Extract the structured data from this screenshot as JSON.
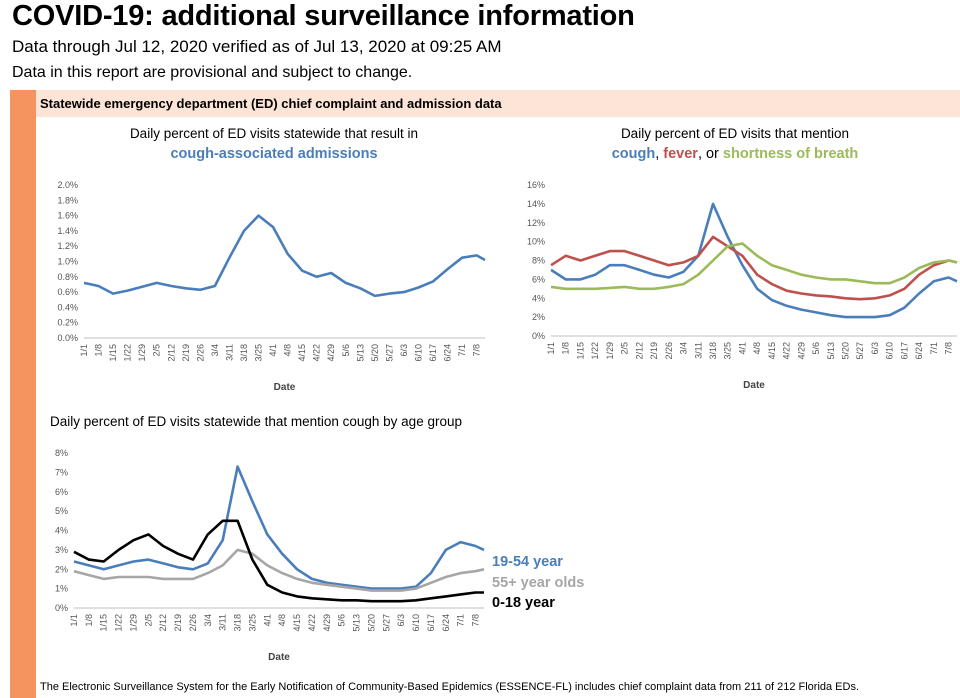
{
  "page": {
    "title": "COVID-19: additional surveillance information",
    "subtitle": "Data through Jul 12, 2020 verified as of Jul 13, 2020 at 09:25 AM",
    "disclaimer": "Data in this report are provisional and subject to change.",
    "section_header": "Statewide emergency department (ED) chief complaint and admission data",
    "footer": "The Electronic Surveillance System for the Early Notification of Community-Based Epidemics (ESSENCE-FL) includes chief complaint data from 211 of 212 Florida EDs."
  },
  "colors": {
    "blue": "#4a7ebb",
    "red": "#c0504d",
    "green": "#9bbb59",
    "gray": "#a6a6a6",
    "black": "#000000",
    "accent": "#f4955f"
  },
  "chart1_text": {
    "line1": "Daily percent of ED visits statewide that result in",
    "line2": "cough-associated admissions"
  },
  "chart2_text": {
    "line1": "Daily percent of ED visits that mention",
    "cough": "cough",
    "comma": ",",
    "fever": "fever",
    "or": ", or",
    "sob": "shortness of breath"
  },
  "chart3_text": {
    "line1": "Daily percent of ED visits statewide that mention cough by age group"
  },
  "chart_data": [
    {
      "type": "line",
      "title": "Daily percent of ED visits statewide that result in cough-associated admissions",
      "xlabel": "Date",
      "ylabel": "",
      "x_ticks": [
        "1/1",
        "1/8",
        "1/15",
        "1/22",
        "1/29",
        "2/5",
        "2/12",
        "2/19",
        "2/26",
        "3/4",
        "3/11",
        "3/18",
        "3/25",
        "4/1",
        "4/8",
        "4/15",
        "4/22",
        "4/29",
        "5/6",
        "5/13",
        "5/20",
        "5/27",
        "6/3",
        "6/10",
        "6/17",
        "6/24",
        "7/1",
        "7/8"
      ],
      "y_ticks": [
        "0.0%",
        "0.2%",
        "0.4%",
        "0.6%",
        "0.8%",
        "1.0%",
        "1.2%",
        "1.4%",
        "1.6%",
        "1.8%",
        "2.0%"
      ],
      "ylim": [
        0,
        2.0
      ],
      "series": [
        {
          "color": "#4a7ebb",
          "x": [
            "1/1",
            "1/8",
            "1/15",
            "1/22",
            "1/29",
            "2/5",
            "2/12",
            "2/19",
            "2/26",
            "3/4",
            "3/11",
            "3/18",
            "3/25",
            "4/1",
            "4/8",
            "4/15",
            "4/22",
            "4/29",
            "5/6",
            "5/13",
            "5/20",
            "5/27",
            "6/3",
            "6/10",
            "6/17",
            "6/24",
            "7/1",
            "7/8",
            "7/12"
          ],
          "values": [
            0.72,
            0.68,
            0.58,
            0.62,
            0.67,
            0.72,
            0.68,
            0.65,
            0.63,
            0.68,
            1.05,
            1.4,
            1.6,
            1.45,
            1.1,
            0.88,
            0.8,
            0.85,
            0.72,
            0.65,
            0.55,
            0.58,
            0.6,
            0.66,
            0.74,
            0.9,
            1.05,
            1.08,
            1.02
          ]
        }
      ]
    },
    {
      "type": "line",
      "title": "Daily percent of ED visits that mention cough, fever, or shortness of breath",
      "xlabel": "Date",
      "ylabel": "",
      "x_ticks": [
        "1/1",
        "1/8",
        "1/15",
        "1/22",
        "1/29",
        "2/5",
        "2/12",
        "2/19",
        "2/26",
        "3/4",
        "3/11",
        "3/18",
        "3/25",
        "4/1",
        "4/8",
        "4/15",
        "4/22",
        "4/29",
        "5/6",
        "5/13",
        "5/20",
        "5/27",
        "6/3",
        "6/10",
        "6/17",
        "6/24",
        "7/1",
        "7/8"
      ],
      "y_ticks": [
        "0%",
        "2%",
        "4%",
        "6%",
        "8%",
        "10%",
        "12%",
        "14%",
        "16%"
      ],
      "ylim": [
        0,
        16
      ],
      "series": [
        {
          "name": "cough",
          "color": "#4a7ebb",
          "x": [
            "1/1",
            "1/8",
            "1/15",
            "1/22",
            "1/29",
            "2/5",
            "2/12",
            "2/19",
            "2/26",
            "3/4",
            "3/11",
            "3/18",
            "3/25",
            "4/1",
            "4/8",
            "4/15",
            "4/22",
            "4/29",
            "5/6",
            "5/13",
            "5/20",
            "5/27",
            "6/3",
            "6/10",
            "6/17",
            "6/24",
            "7/1",
            "7/8",
            "7/12"
          ],
          "values": [
            7.0,
            6.0,
            6.0,
            6.5,
            7.5,
            7.5,
            7.0,
            6.5,
            6.2,
            6.8,
            8.5,
            14.0,
            10.5,
            7.5,
            5.0,
            3.8,
            3.2,
            2.8,
            2.5,
            2.2,
            2.0,
            2.0,
            2.0,
            2.2,
            3.0,
            4.5,
            5.8,
            6.2,
            5.8
          ]
        },
        {
          "name": "fever",
          "color": "#c0504d",
          "x": [
            "1/1",
            "1/8",
            "1/15",
            "1/22",
            "1/29",
            "2/5",
            "2/12",
            "2/19",
            "2/26",
            "3/4",
            "3/11",
            "3/18",
            "3/25",
            "4/1",
            "4/8",
            "4/15",
            "4/22",
            "4/29",
            "5/6",
            "5/13",
            "5/20",
            "5/27",
            "6/3",
            "6/10",
            "6/17",
            "6/24",
            "7/1",
            "7/8",
            "7/12"
          ],
          "values": [
            7.5,
            8.5,
            8.0,
            8.5,
            9.0,
            9.0,
            8.5,
            8.0,
            7.5,
            7.8,
            8.5,
            10.5,
            9.5,
            8.5,
            6.5,
            5.5,
            4.8,
            4.5,
            4.3,
            4.2,
            4.0,
            3.9,
            4.0,
            4.3,
            5.0,
            6.5,
            7.5,
            8.0,
            7.8
          ]
        },
        {
          "name": "shortness of breath",
          "color": "#9bbb59",
          "x": [
            "1/1",
            "1/8",
            "1/15",
            "1/22",
            "1/29",
            "2/5",
            "2/12",
            "2/19",
            "2/26",
            "3/4",
            "3/11",
            "3/18",
            "3/25",
            "4/1",
            "4/8",
            "4/15",
            "4/22",
            "4/29",
            "5/6",
            "5/13",
            "5/20",
            "5/27",
            "6/3",
            "6/10",
            "6/17",
            "6/24",
            "7/1",
            "7/8",
            "7/12"
          ],
          "values": [
            5.2,
            5.0,
            5.0,
            5.0,
            5.1,
            5.2,
            5.0,
            5.0,
            5.2,
            5.5,
            6.5,
            8.0,
            9.5,
            9.8,
            8.5,
            7.5,
            7.0,
            6.5,
            6.2,
            6.0,
            6.0,
            5.8,
            5.6,
            5.6,
            6.2,
            7.2,
            7.8,
            8.0,
            7.8
          ]
        }
      ]
    },
    {
      "type": "line",
      "title": "Daily percent of ED visits statewide that mention cough by age group",
      "xlabel": "Date",
      "ylabel": "",
      "x_ticks": [
        "1/1",
        "1/8",
        "1/15",
        "1/22",
        "1/29",
        "2/5",
        "2/12",
        "2/19",
        "2/26",
        "3/4",
        "3/11",
        "3/18",
        "3/25",
        "4/1",
        "4/8",
        "4/15",
        "4/22",
        "4/29",
        "5/6",
        "5/13",
        "5/20",
        "5/27",
        "6/3",
        "6/10",
        "6/17",
        "6/24",
        "7/1",
        "7/8"
      ],
      "y_ticks": [
        "0%",
        "1%",
        "2%",
        "3%",
        "4%",
        "5%",
        "6%",
        "7%",
        "8%"
      ],
      "ylim": [
        0,
        8
      ],
      "legend": "right",
      "series": [
        {
          "name": "19-54 year",
          "color": "#4a7ebb",
          "x": [
            "1/1",
            "1/8",
            "1/15",
            "1/22",
            "1/29",
            "2/5",
            "2/12",
            "2/19",
            "2/26",
            "3/4",
            "3/11",
            "3/18",
            "3/25",
            "4/1",
            "4/8",
            "4/15",
            "4/22",
            "4/29",
            "5/6",
            "5/13",
            "5/20",
            "5/27",
            "6/3",
            "6/10",
            "6/17",
            "6/24",
            "7/1",
            "7/8",
            "7/12"
          ],
          "values": [
            2.4,
            2.2,
            2.0,
            2.2,
            2.4,
            2.5,
            2.3,
            2.1,
            2.0,
            2.3,
            3.5,
            7.3,
            5.5,
            3.8,
            2.8,
            2.0,
            1.5,
            1.3,
            1.2,
            1.1,
            1.0,
            1.0,
            1.0,
            1.1,
            1.8,
            3.0,
            3.4,
            3.2,
            3.0
          ]
        },
        {
          "name": "55+ year olds",
          "color": "#a6a6a6",
          "x": [
            "1/1",
            "1/8",
            "1/15",
            "1/22",
            "1/29",
            "2/5",
            "2/12",
            "2/19",
            "2/26",
            "3/4",
            "3/11",
            "3/18",
            "3/25",
            "4/1",
            "4/8",
            "4/15",
            "4/22",
            "4/29",
            "5/6",
            "5/13",
            "5/20",
            "5/27",
            "6/3",
            "6/10",
            "6/17",
            "6/24",
            "7/1",
            "7/8",
            "7/12"
          ],
          "values": [
            1.9,
            1.7,
            1.5,
            1.6,
            1.6,
            1.6,
            1.5,
            1.5,
            1.5,
            1.8,
            2.2,
            3.0,
            2.8,
            2.2,
            1.8,
            1.5,
            1.3,
            1.2,
            1.1,
            1.0,
            0.9,
            0.9,
            0.9,
            1.0,
            1.3,
            1.6,
            1.8,
            1.9,
            2.0
          ]
        },
        {
          "name": "0-18 year",
          "color": "#000000",
          "x": [
            "1/1",
            "1/8",
            "1/15",
            "1/22",
            "1/29",
            "2/5",
            "2/12",
            "2/19",
            "2/26",
            "3/4",
            "3/11",
            "3/18",
            "3/25",
            "4/1",
            "4/8",
            "4/15",
            "4/22",
            "4/29",
            "5/6",
            "5/13",
            "5/20",
            "5/27",
            "6/3",
            "6/10",
            "6/17",
            "6/24",
            "7/1",
            "7/8",
            "7/12"
          ],
          "values": [
            2.9,
            2.5,
            2.4,
            3.0,
            3.5,
            3.8,
            3.2,
            2.8,
            2.5,
            3.8,
            4.5,
            4.5,
            2.5,
            1.2,
            0.8,
            0.6,
            0.5,
            0.45,
            0.4,
            0.4,
            0.35,
            0.35,
            0.35,
            0.4,
            0.5,
            0.6,
            0.7,
            0.8,
            0.8
          ]
        }
      ]
    }
  ]
}
